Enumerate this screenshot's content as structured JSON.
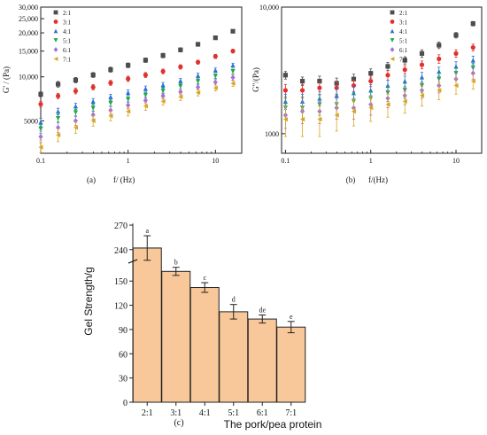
{
  "legend_labels": [
    "2:1",
    "3:1",
    "4:1",
    "5:1",
    "6:1",
    "7:1"
  ],
  "series_colors": [
    "#4d4d4d",
    "#e0312d",
    "#2f6fd6",
    "#20a84a",
    "#a66fd6",
    "#d9a521"
  ],
  "series_markers": [
    "square",
    "circle",
    "triangle-up",
    "triangle-down",
    "diamond",
    "triangle-left"
  ],
  "chart_data": [
    {
      "type": "scatter",
      "panel_label": "(a)",
      "xlabel": "f/ (Hz)",
      "ylabel": "G' / (Pa)",
      "xscale": "log",
      "yscale": "log",
      "xlim": [
        0.1,
        20
      ],
      "ylim": [
        3000,
        30000
      ],
      "x_ticks": [
        "0.1",
        "1",
        "10"
      ],
      "y_ticks": [
        "5000",
        "10,000",
        "15,000",
        "20,000",
        "25,000",
        "30,000"
      ],
      "legend_position": "top-left",
      "x": [
        0.1,
        0.158,
        0.251,
        0.398,
        0.631,
        1.0,
        1.585,
        2.512,
        3.981,
        6.31,
        10.0,
        15.85
      ],
      "series": [
        {
          "name": "2:1",
          "values": [
            7600,
            8900,
            9500,
            10300,
            11200,
            12000,
            13000,
            14000,
            15300,
            16700,
            18500,
            20500
          ],
          "errors": [
            300,
            400,
            400,
            400,
            450,
            450,
            450,
            500,
            500,
            500,
            500,
            500
          ]
        },
        {
          "name": "3:1",
          "values": [
            6500,
            7400,
            8000,
            8500,
            9100,
            9700,
            10300,
            10900,
            11700,
            12600,
            13800,
            15000
          ],
          "errors": [
            300,
            300,
            350,
            350,
            350,
            400,
            400,
            400,
            400,
            400,
            450,
            450
          ]
        },
        {
          "name": "4:1",
          "values": [
            4900,
            5800,
            6300,
            6800,
            7300,
            7800,
            8300,
            8800,
            9400,
            10200,
            11100,
            12000
          ],
          "errors": [
            300,
            300,
            300,
            300,
            300,
            350,
            350,
            350,
            350,
            400,
            400,
            400
          ]
        },
        {
          "name": "5:1",
          "values": [
            4400,
            5200,
            5700,
            6100,
            6600,
            7000,
            7500,
            8000,
            8600,
            9300,
            10100,
            10900
          ],
          "errors": [
            300,
            300,
            300,
            300,
            300,
            300,
            300,
            350,
            350,
            350,
            350,
            400
          ]
        },
        {
          "name": "6:1",
          "values": [
            3900,
            4500,
            5000,
            5500,
            5900,
            6400,
            6900,
            7400,
            7900,
            8500,
            9200,
            9900
          ],
          "errors": [
            350,
            350,
            350,
            350,
            350,
            350,
            350,
            350,
            350,
            350,
            400,
            400
          ]
        },
        {
          "name": "7:1",
          "values": [
            3300,
            4000,
            4500,
            5000,
            5400,
            5800,
            6300,
            6800,
            7300,
            7800,
            8400,
            9000
          ],
          "errors": [
            400,
            400,
            400,
            400,
            400,
            400,
            400,
            400,
            400,
            400,
            400,
            400
          ]
        }
      ]
    },
    {
      "type": "scatter",
      "panel_label": "(b)",
      "xlabel": "f/(Hz)",
      "ylabel": "G\"/(Pa)",
      "xscale": "log",
      "yscale": "log",
      "xlim": [
        0.09,
        20
      ],
      "ylim": [
        700,
        10000
      ],
      "x_ticks": [
        "0.1",
        "1",
        "10"
      ],
      "y_ticks": [
        "1000",
        "10,000"
      ],
      "legend_position": "top-right",
      "x": [
        0.1,
        0.158,
        0.251,
        0.398,
        0.631,
        1.0,
        1.585,
        2.512,
        3.981,
        6.31,
        10.0,
        15.85
      ],
      "series": [
        {
          "name": "2:1",
          "values": [
            2900,
            2600,
            2600,
            2500,
            2700,
            3000,
            3400,
            3800,
            4300,
            5000,
            6000,
            7400
          ],
          "errors": [
            200,
            200,
            250,
            250,
            250,
            250,
            250,
            250,
            300,
            300,
            300,
            300
          ]
        },
        {
          "name": "3:1",
          "values": [
            2200,
            2200,
            2300,
            2300,
            2400,
            2600,
            2900,
            3200,
            3500,
            3900,
            4300,
            4800
          ],
          "errors": [
            250,
            250,
            250,
            250,
            250,
            250,
            250,
            250,
            250,
            300,
            300,
            300
          ]
        },
        {
          "name": "4:1",
          "values": [
            1800,
            1800,
            1900,
            2000,
            2100,
            2200,
            2400,
            2600,
            2800,
            3100,
            3400,
            3800
          ],
          "errors": [
            250,
            250,
            250,
            250,
            250,
            250,
            250,
            250,
            250,
            250,
            300,
            300
          ]
        },
        {
          "name": "5:1",
          "values": [
            1600,
            1600,
            1700,
            1700,
            1800,
            1900,
            2100,
            2200,
            2400,
            2700,
            3000,
            3300
          ],
          "errors": [
            300,
            300,
            300,
            300,
            300,
            300,
            300,
            300,
            300,
            300,
            300,
            300
          ]
        },
        {
          "name": "6:1",
          "values": [
            1400,
            1500,
            1500,
            1600,
            1600,
            1700,
            1900,
            2000,
            2200,
            2400,
            2700,
            3000
          ],
          "errors": [
            300,
            300,
            300,
            300,
            300,
            300,
            300,
            300,
            300,
            300,
            300,
            300
          ]
        },
        {
          "name": "7:1",
          "values": [
            1300,
            1300,
            1300,
            1400,
            1500,
            1600,
            1700,
            1800,
            2000,
            2200,
            2400,
            2600
          ],
          "errors": [
            350,
            350,
            350,
            350,
            350,
            350,
            350,
            350,
            350,
            350,
            350,
            350
          ]
        }
      ]
    },
    {
      "type": "bar",
      "panel_label": "(c)",
      "xlabel": "The pork/pea protein",
      "ylabel": "Gel Strength/g",
      "categories": [
        "2:1",
        "3:1",
        "4:1",
        "5:1",
        "6:1",
        "7:1"
      ],
      "values": [
        242,
        162,
        142,
        112,
        103,
        93
      ],
      "errors": [
        15,
        5,
        6,
        9,
        5,
        7
      ],
      "significance_letters": [
        "a",
        "b",
        "c",
        "d",
        "de",
        "e"
      ],
      "axis_break": [
        170,
        230
      ],
      "y_ticks_lower": [
        0,
        30,
        60,
        90,
        120,
        150
      ],
      "y_ticks_upper": [
        240,
        270
      ],
      "bar_color": "#f8c89a"
    }
  ]
}
